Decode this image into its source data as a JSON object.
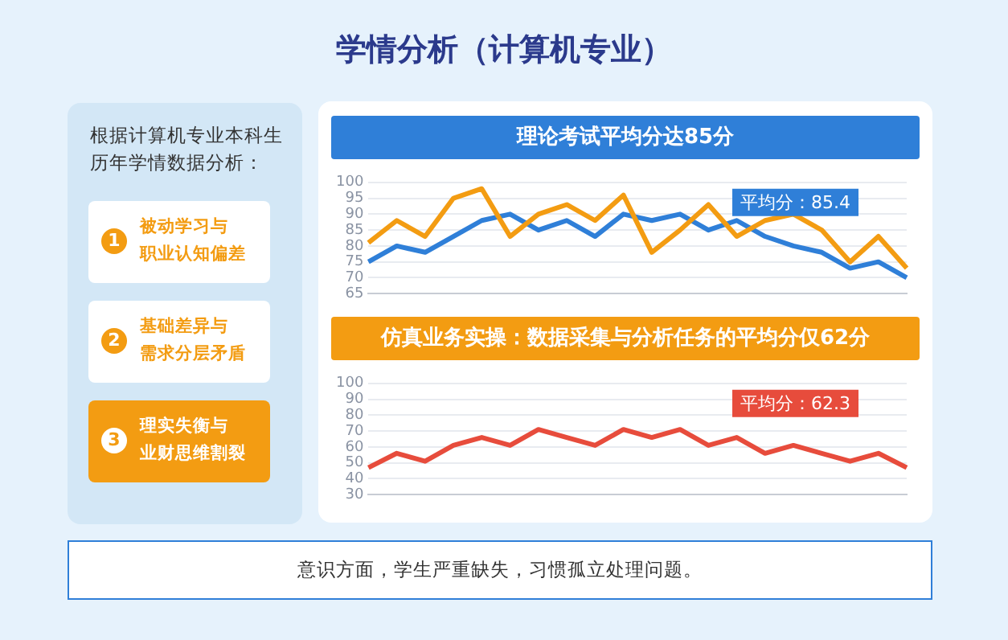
{
  "chart_data": [
    {
      "type": "other",
      "title": "学情分析（计算机专业）"
    },
    {
      "type": "other",
      "title": "根据计算机专业本科生历年学情数据分析：",
      "annotations": [
        "1",
        "被动学习与职业认知偏差",
        "2",
        "基础差异与需求分层矛盾",
        "3",
        "理实失衡与业财思维割裂"
      ]
    },
    {
      "type": "line",
      "title": "理论考试平均分达85分",
      "categories": [
        null,
        null,
        null,
        null,
        null,
        null,
        null,
        null,
        null,
        null,
        null,
        null,
        null,
        null,
        null,
        null,
        null,
        null,
        null,
        null
      ],
      "series": [
        {
          "color": "#f39c12",
          "values": [
            81,
            88,
            83,
            95,
            98,
            83,
            90,
            93,
            88,
            96,
            78,
            85,
            93,
            83,
            88,
            90,
            85,
            75,
            83,
            73
          ]
        },
        {
          "color": "#2f7fd8",
          "values": [
            75,
            80,
            78,
            83,
            88,
            90,
            85,
            88,
            83,
            90,
            88,
            90,
            85,
            88,
            83,
            80,
            78,
            73,
            75,
            70
          ]
        }
      ],
      "ylim": [
        65,
        100
      ],
      "yticks": [
        65,
        70,
        75,
        80,
        85,
        90,
        95,
        100
      ],
      "grid": "y",
      "tick_labels": "y",
      "annotations": [
        "平均分：85.4"
      ]
    },
    {
      "type": "line",
      "title": "仿真业务实操：数据采集与分析任务的平均分仅62分",
      "categories": [
        null,
        null,
        null,
        null,
        null,
        null,
        null,
        null,
        null,
        null,
        null,
        null,
        null,
        null,
        null,
        null,
        null,
        null,
        null,
        null
      ],
      "series": [
        {
          "color": "#e74c3c",
          "values": [
            47,
            56,
            51,
            61,
            66,
            61,
            71,
            66,
            61,
            71,
            66,
            71,
            61,
            66,
            56,
            61,
            56,
            51,
            56,
            47
          ]
        }
      ],
      "ylim": [
        30,
        100
      ],
      "yticks": [
        30,
        40,
        50,
        60,
        70,
        80,
        90,
        100
      ],
      "grid": "y",
      "tick_labels": "y",
      "annotations": [
        "平均分：62.3"
      ]
    },
    {
      "type": "other",
      "annotations": [
        "意识方面，学生严重缺失，习惯孤立处理问题。"
      ]
    }
  ]
}
